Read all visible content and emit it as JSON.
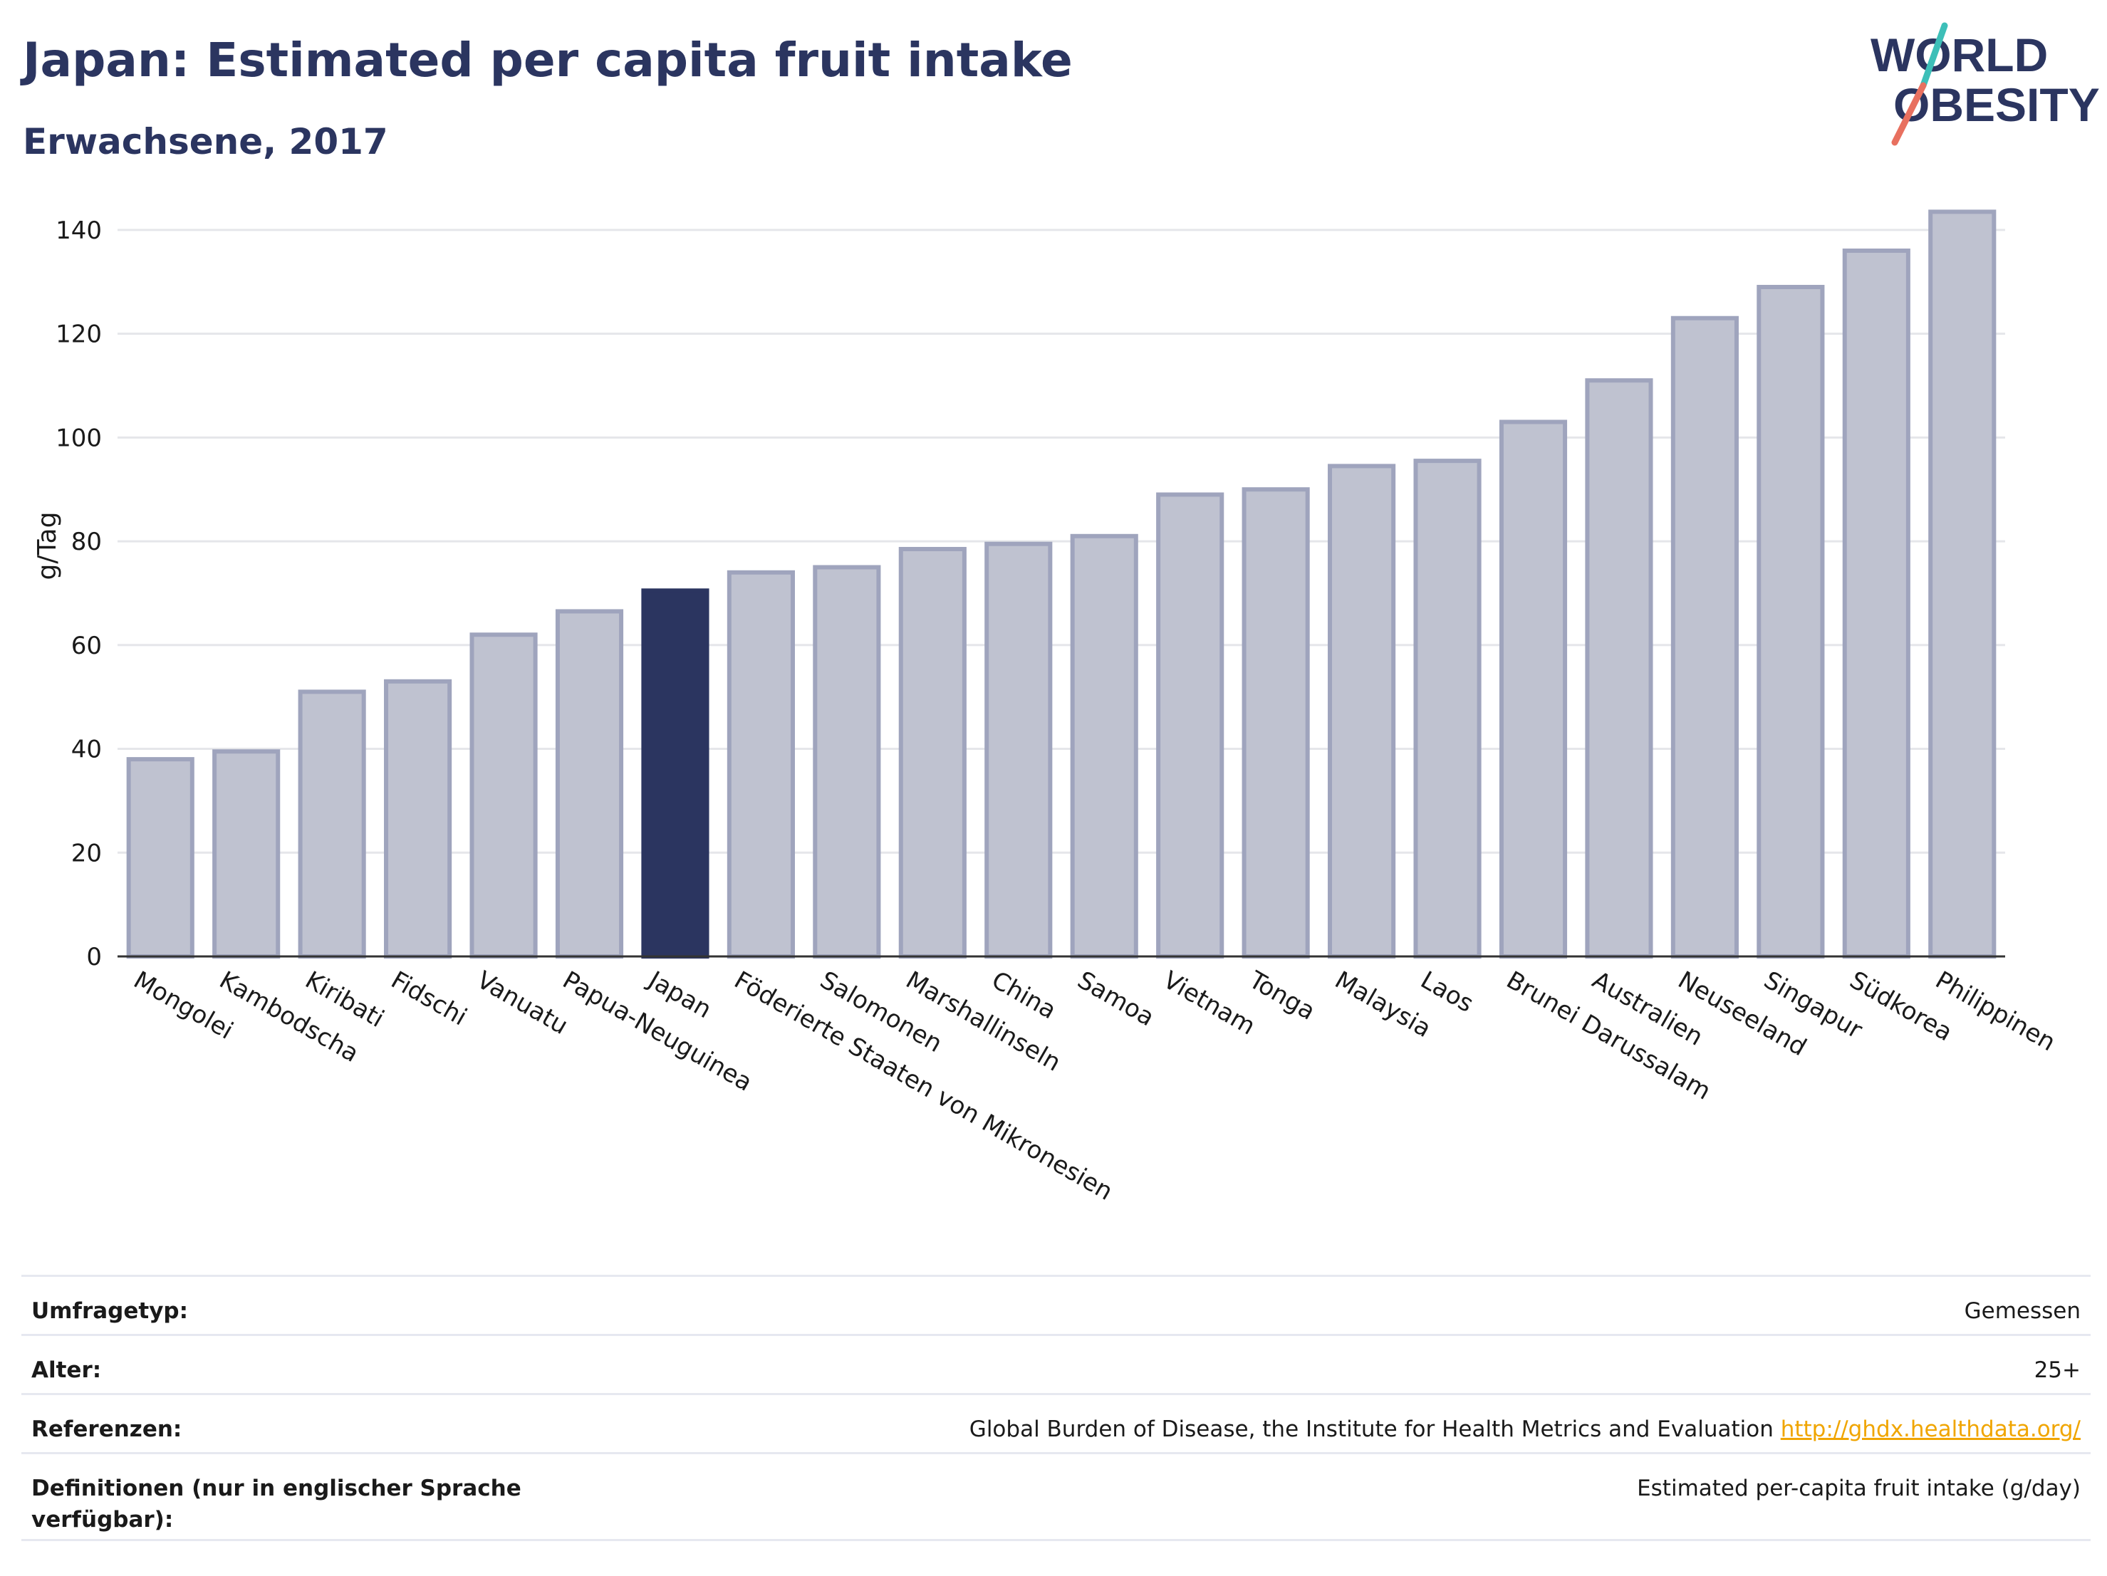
{
  "header": {
    "title": "Japan: Estimated per capita fruit intake",
    "subtitle": "Erwachsene, 2017"
  },
  "logo": {
    "line1": "WORLD",
    "line2": "OBESITY",
    "colors": {
      "text": "#2b3560",
      "slash_teal": "#3dbfb8",
      "slash_red": "#e8705f"
    }
  },
  "colors": {
    "bar_default": "#bfc2d0",
    "bar_default_stroke": "#9fa4bd",
    "bar_highlight": "#2b3560",
    "axis": "#333333",
    "grid": "#e5e6ea"
  },
  "chart_data": {
    "type": "bar",
    "ylabel": "g/Tag",
    "ylim": [
      0,
      150
    ],
    "yticks": [
      0,
      20,
      40,
      60,
      80,
      100,
      120,
      140
    ],
    "grid": true,
    "highlight": "Japan",
    "categories": [
      "Mongolei",
      "Kambodscha",
      "Kiribati",
      "Fidschi",
      "Vanuatu",
      "Papua-Neuguinea",
      "Japan",
      "Föderierte Staaten von Mikronesien",
      "Salomonen",
      "Marshallinseln",
      "China",
      "Samoa",
      "Vietnam",
      "Tonga",
      "Malaysia",
      "Laos",
      "Brunei Darussalam",
      "Australien",
      "Neuseeland",
      "Singapur",
      "Südkorea",
      "Philippinen"
    ],
    "values": [
      38,
      39.5,
      51,
      53,
      62,
      66.5,
      70.5,
      74,
      75,
      78.5,
      79.5,
      81,
      89,
      90,
      94.5,
      95.5,
      103,
      111,
      123,
      129,
      136,
      143.5
    ]
  },
  "meta": [
    {
      "key": "Umfragetyp:",
      "value": "Gemessen"
    },
    {
      "key": "Alter:",
      "value": "25+"
    },
    {
      "key": "Referenzen:",
      "value": "Global Burden of Disease, the Institute for Health Metrics and Evaluation",
      "link": "http://ghdx.healthdata.org/"
    },
    {
      "key": "Definitionen (nur in englischer Sprache verfügbar):",
      "value": "Estimated per-capita fruit intake (g/day)"
    }
  ]
}
